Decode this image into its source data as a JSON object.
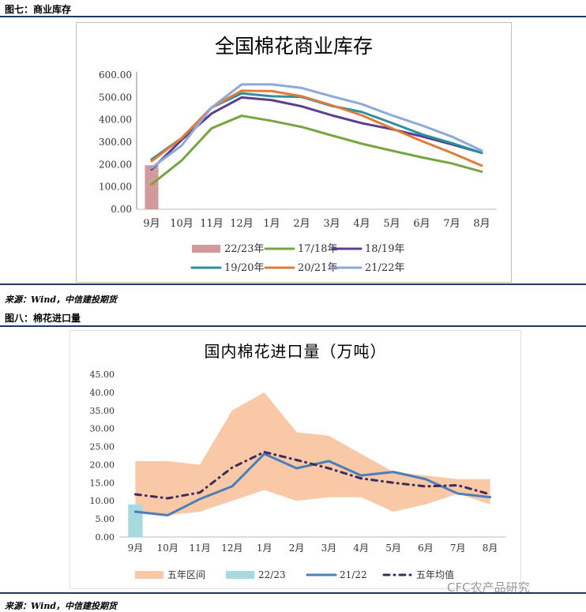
{
  "fig7": {
    "label": "图七：商业库存",
    "source": "来源：Wind，中信建投期货"
  },
  "fig8": {
    "label": "图八：棉花进口量",
    "source": "来源：Wind，中信建投期货"
  },
  "watermark": "CFC农产品研究",
  "chart_data": [
    {
      "type": "line",
      "title": "全国棉花商业库存",
      "xlabel": "",
      "ylabel": "",
      "categories": [
        "9月",
        "10月",
        "11月",
        "12月",
        "1月",
        "2月",
        "3月",
        "4月",
        "5月",
        "6月",
        "7月",
        "8月"
      ],
      "y_ticks": [
        "0.00",
        "100.00",
        "200.00",
        "300.00",
        "400.00",
        "500.00",
        "600.00"
      ],
      "ylim": [
        0,
        600
      ],
      "grid": false,
      "legend_position": "bottom",
      "series": [
        {
          "name": "22/23年",
          "kind": "bar",
          "color": "#d29a9a",
          "values": [
            197,
            null,
            null,
            null,
            null,
            null,
            null,
            null,
            null,
            null,
            null,
            null
          ]
        },
        {
          "name": "17/18年",
          "kind": "line",
          "color": "#77a640",
          "values": [
            112,
            218,
            362,
            418,
            395,
            368,
            330,
            293,
            262,
            232,
            205,
            168
          ]
        },
        {
          "name": "18/19年",
          "kind": "line",
          "color": "#5b3f8c",
          "values": [
            178,
            310,
            428,
            500,
            488,
            460,
            420,
            385,
            358,
            326,
            290,
            252
          ]
        },
        {
          "name": "19/20年",
          "kind": "line",
          "color": "#2f8f9d",
          "values": [
            223,
            318,
            455,
            518,
            505,
            502,
            462,
            435,
            386,
            335,
            296,
            252
          ]
        },
        {
          "name": "20/21年",
          "kind": "line",
          "color": "#e07b39",
          "values": [
            215,
            318,
            455,
            530,
            528,
            505,
            465,
            420,
            362,
            305,
            252,
            195
          ]
        },
        {
          "name": "21/22年",
          "kind": "line",
          "color": "#8ea9d8",
          "values": [
            185,
            285,
            455,
            558,
            558,
            542,
            505,
            470,
            420,
            375,
            325,
            262
          ]
        }
      ]
    },
    {
      "type": "line",
      "title": "国内棉花进口量（万吨）",
      "xlabel": "",
      "ylabel": "",
      "categories": [
        "9月",
        "10月",
        "11月",
        "12月",
        "1月",
        "2月",
        "3月",
        "4月",
        "5月",
        "6月",
        "7月",
        "8月"
      ],
      "y_ticks": [
        "0.00",
        "5.00",
        "10.00",
        "15.00",
        "20.00",
        "25.00",
        "30.00",
        "35.00",
        "40.00",
        "45.00"
      ],
      "ylim": [
        0,
        45
      ],
      "grid": false,
      "legend_position": "bottom",
      "band": {
        "name": "五年区间",
        "color": "#f9c9a7",
        "upper": [
          21,
          21,
          20,
          35,
          40,
          29,
          28,
          23,
          18,
          17,
          16,
          16
        ],
        "lower": [
          7,
          6,
          7,
          10,
          13,
          10,
          11,
          11,
          7,
          9,
          12,
          9
        ]
      },
      "series": [
        {
          "name": "22/23",
          "kind": "bar",
          "color": "#a8d8e0",
          "values": [
            9,
            null,
            null,
            null,
            null,
            null,
            null,
            null,
            null,
            null,
            null,
            null
          ]
        },
        {
          "name": "21/22",
          "kind": "line",
          "color": "#4a7ebb",
          "values": [
            7,
            6,
            10.5,
            14,
            23,
            19,
            21,
            17,
            18,
            16,
            12,
            11
          ]
        },
        {
          "name": "五年均值",
          "kind": "dashdot",
          "color": "#3e2a5c",
          "values": [
            11.8,
            10.7,
            12.3,
            19.2,
            23.5,
            21.3,
            19,
            16.2,
            15,
            14,
            14.3,
            11.8
          ]
        }
      ]
    }
  ]
}
